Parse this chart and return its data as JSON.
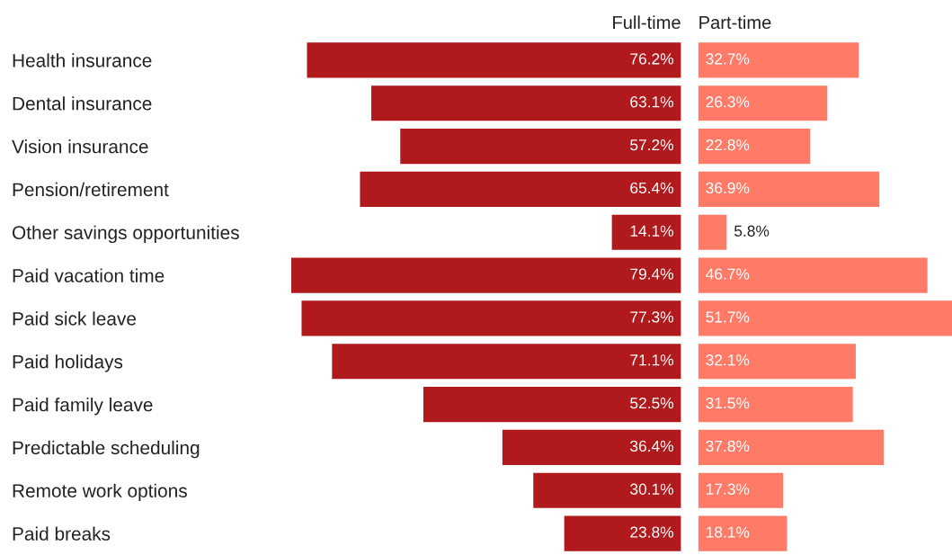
{
  "chart_data": [
    {
      "type": "bar",
      "orientation": "horizontal",
      "title": "Full-time",
      "categories": [
        "Health insurance",
        "Dental insurance",
        "Vision insurance",
        "Pension/retirement",
        "Other savings opportunities",
        "Paid vacation time",
        "Paid sick leave",
        "Paid holidays",
        "Paid family leave",
        "Predictable scheduling",
        "Remote work options",
        "Paid breaks"
      ],
      "series": [
        {
          "color": "#b01a1d",
          "values": [
            76.2,
            63.1,
            57.2,
            65.4,
            14.1,
            79.4,
            77.3,
            71.1,
            52.5,
            36.4,
            30.1,
            23.8
          ],
          "value_labels": [
            "76.2%",
            "63.1%",
            "57.2%",
            "65.4%",
            "14.1%",
            "79.4%",
            "77.3%",
            "71.1%",
            "52.5%",
            "36.4%",
            "30.1%",
            "23.8%"
          ]
        }
      ]
    },
    {
      "type": "bar",
      "orientation": "horizontal",
      "title": "Part-time",
      "categories": [
        null,
        null,
        null,
        null,
        null,
        null,
        null,
        null,
        null,
        null,
        null,
        null
      ],
      "series": [
        {
          "color": "#ff7b67",
          "values": [
            32.7,
            26.3,
            22.8,
            36.9,
            5.8,
            46.7,
            51.7,
            32.1,
            31.5,
            37.8,
            17.3,
            18.1
          ],
          "value_labels": [
            "32.7%",
            "26.3%",
            "22.8%",
            "36.9%",
            "5.8%",
            "46.7%",
            "51.7%",
            "32.1%",
            "31.5%",
            "37.8%",
            "17.3%",
            "18.1%"
          ]
        }
      ]
    }
  ]
}
